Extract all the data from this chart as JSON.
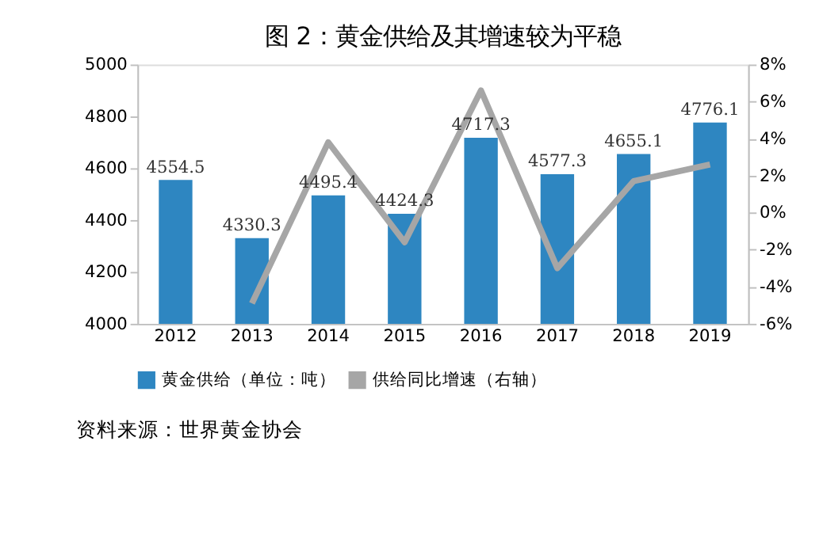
{
  "chart_data": {
    "type": "bar",
    "title": "图 2：黄金供给及其增速较为平稳",
    "categories": [
      "2012",
      "2013",
      "2014",
      "2015",
      "2016",
      "2017",
      "2018",
      "2019"
    ],
    "series": [
      {
        "name": "黄金供给（单位：吨）",
        "color": "#2e86c1",
        "values": [
          4554.5,
          4330.3,
          4495.4,
          4424.3,
          4717.3,
          4577.3,
          4655.1,
          4776.1
        ],
        "value_labels": [
          "4554.5",
          "4330.3",
          "4495.4",
          "4424.3",
          "4717.3",
          "4577.3",
          "4655.1",
          "4776.1"
        ]
      },
      {
        "name": "供给同比增速（右轴）",
        "type": "line",
        "axis": "y2",
        "color": "#a6a6a6",
        "values": [
          null,
          -4.9,
          3.8,
          -1.6,
          6.6,
          -3.0,
          1.7,
          2.6
        ]
      }
    ],
    "ylim": [
      4000,
      5000
    ],
    "yticks": [
      4000,
      4200,
      4400,
      4600,
      4800,
      5000
    ],
    "y2lim": [
      -6,
      8
    ],
    "y2ticks": [
      {
        "value": -6,
        "label": "-6%"
      },
      {
        "value": -4,
        "label": "-4%"
      },
      {
        "value": -2,
        "label": "-2%"
      },
      {
        "value": 0,
        "label": "0%"
      },
      {
        "value": 2,
        "label": "2%"
      },
      {
        "value": 4,
        "label": "4%"
      },
      {
        "value": 6,
        "label": "6%"
      },
      {
        "value": 8,
        "label": "8%"
      }
    ],
    "grid": false,
    "legend": "bottom",
    "marker": "none",
    "line_style": "solid",
    "annotations": [
      "资料来源：世界黄金协会"
    ]
  }
}
